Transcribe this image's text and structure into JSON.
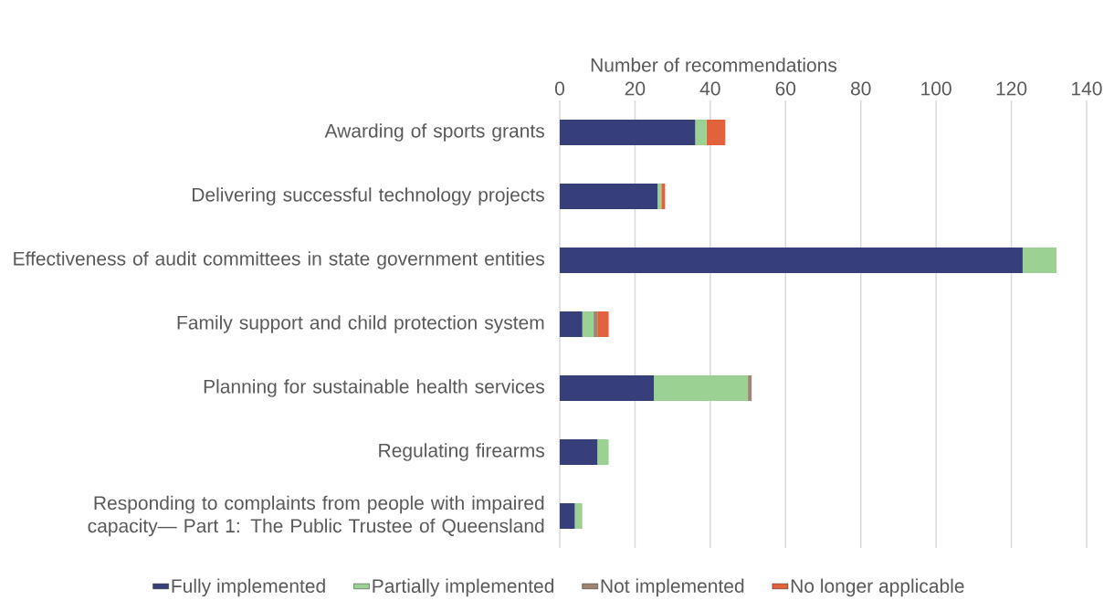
{
  "chart_data": {
    "type": "bar",
    "orientation": "horizontal",
    "stacked": true,
    "xlabel": "Number of recommendations",
    "categories": [
      "Awarding of sports grants",
      "Delivering successful technology projects",
      "Effectiveness of audit committees in state government entities",
      "Family support and child protection system",
      "Planning for sustainable health services",
      "Regulating firearms",
      "Responding to complaints from people with impaired capacity— Part 1: The Public Trustee of Queensland"
    ],
    "series": [
      {
        "name": "Fully implemented",
        "color": "#373f7a",
        "values": [
          36,
          26,
          123,
          6,
          25,
          10,
          4
        ]
      },
      {
        "name": "Partially implemented",
        "color": "#9bd294",
        "values": [
          3,
          1,
          9,
          3,
          25,
          3,
          2
        ]
      },
      {
        "name": "Not implemented",
        "color": "#a08474",
        "values": [
          0,
          0,
          0,
          1,
          1,
          0,
          0
        ]
      },
      {
        "name": "No longer applicable",
        "color": "#e2623b",
        "values": [
          5,
          1,
          0,
          3,
          0,
          0,
          0
        ]
      }
    ],
    "xlim": [
      0,
      140
    ],
    "xticks": [
      0,
      20,
      40,
      60,
      80,
      100,
      120,
      140
    ],
    "grid": "x",
    "legend": "bottom"
  }
}
